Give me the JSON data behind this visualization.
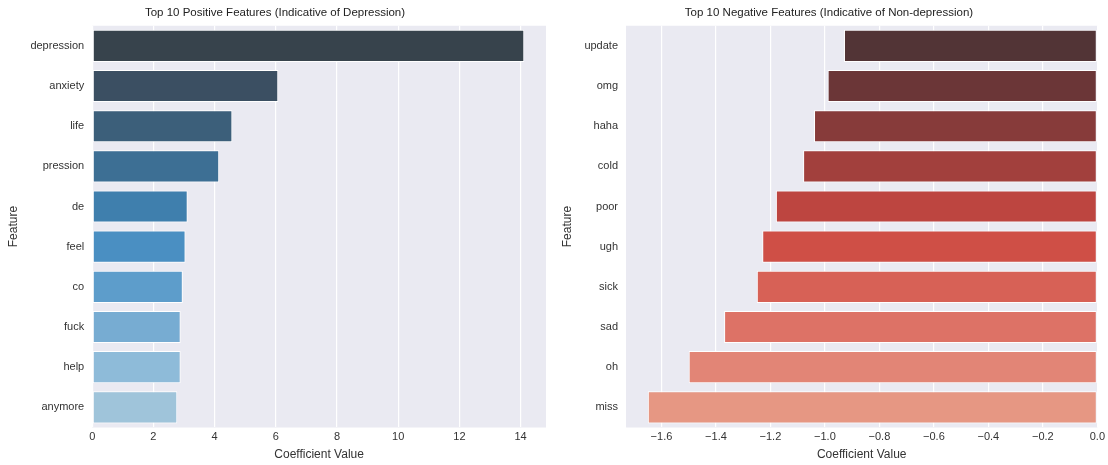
{
  "chart_data": [
    {
      "type": "bar",
      "orientation": "horizontal",
      "title": "Top 10 Positive Features (Indicative of Depression)",
      "xlabel": "Coefficient Value",
      "ylabel": "Feature",
      "categories": [
        "depression",
        "anxiety",
        "life",
        "pression",
        "de",
        "feel",
        "co",
        "fuck",
        "help",
        "anymore"
      ],
      "values": [
        14.12,
        6.08,
        4.58,
        4.15,
        3.12,
        3.05,
        2.96,
        2.89,
        2.89,
        2.78
      ],
      "colors": [
        "#37434c",
        "#3b4f62",
        "#3c5f7a",
        "#3d6f94",
        "#3f7fad",
        "#4a8fc2",
        "#5d9dcb",
        "#77acd2",
        "#8ebbd9",
        "#9fc4da"
      ],
      "xlim": [
        0,
        14.83
      ],
      "xticks": [
        0,
        2,
        4,
        6,
        8,
        10,
        12,
        14
      ],
      "grid": "x"
    },
    {
      "type": "bar",
      "orientation": "horizontal",
      "title": "Top 10 Negative Features (Indicative of Non-depression)",
      "xlabel": "Coefficient Value",
      "ylabel": "Feature",
      "categories": [
        "update",
        "omg",
        "haha",
        "cold",
        "poor",
        "ugh",
        "sick",
        "sad",
        "oh",
        "miss"
      ],
      "values": [
        -0.93,
        -0.99,
        -1.04,
        -1.08,
        -1.18,
        -1.23,
        -1.25,
        -1.37,
        -1.5,
        -1.65
      ],
      "colors": [
        "#523436",
        "#6b3637",
        "#873b3a",
        "#a2403d",
        "#bd4540",
        "#cf4f46",
        "#d76156",
        "#dd7266",
        "#e28576",
        "#e69783"
      ],
      "xlim": [
        -1.73,
        0
      ],
      "xticks": [
        {
          "value": -1.6,
          "label": "−1.6"
        },
        {
          "value": -1.4,
          "label": "−1.4"
        },
        {
          "value": -1.2,
          "label": "−1.2"
        },
        {
          "value": -1.0,
          "label": "−1.0"
        },
        {
          "value": -0.8,
          "label": "−0.8"
        },
        {
          "value": -0.6,
          "label": "−0.6"
        },
        {
          "value": -0.4,
          "label": "−0.4"
        },
        {
          "value": -0.2,
          "label": "−0.2"
        },
        {
          "value": 0,
          "label": "0.0"
        }
      ],
      "grid": "x"
    }
  ]
}
